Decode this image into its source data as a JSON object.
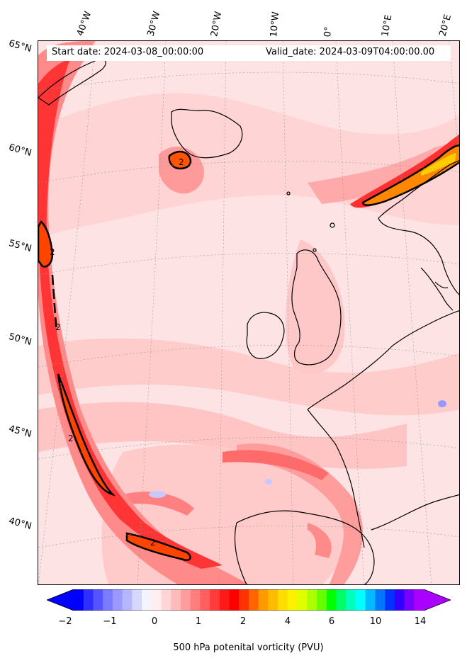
{
  "header": {
    "start_date": "Start date: 2024-03-08_00:00:00",
    "valid_date": "Valid_date: 2024-03-09T04:00:00.00"
  },
  "longitude_labels": [
    "40°W",
    "30°W",
    "20°W",
    "10°W",
    "0°",
    "10°E",
    "20°E"
  ],
  "latitude_labels": [
    "65°N",
    "60°N",
    "55°N",
    "50°N",
    "45°N",
    "40°N"
  ],
  "contour_label": "2",
  "colorbar": {
    "label": "500 hPa potenital vorticity (PVU)",
    "ticks": [
      "−2",
      "−1",
      "0",
      "1",
      "2",
      "4",
      "6",
      "10",
      "14"
    ],
    "colors": [
      "#0000ff",
      "#2e2eff",
      "#5555ff",
      "#7b7bff",
      "#9999ff",
      "#b6b6ff",
      "#d6d6ff",
      "#f4f4ff",
      "#ffeeee",
      "#ffd5d5",
      "#ffbbbb",
      "#ff9d9d",
      "#ff7d7d",
      "#ff5f5f",
      "#ff3b3b",
      "#ff1a1a",
      "#ff0000",
      "#ff3300",
      "#ff6600",
      "#ff9900",
      "#ffbb00",
      "#ffdd00",
      "#fff200",
      "#ddff00",
      "#aaff00",
      "#66ff00",
      "#00ff00",
      "#00ff66",
      "#00ffbb",
      "#00ffff",
      "#00bbff",
      "#0077ff",
      "#0033ff",
      "#3300ff",
      "#7700ff",
      "#aa00ff"
    ],
    "extend_low_color": "#0000ff",
    "extend_high_color": "#aa00ff"
  },
  "colors": {
    "background_pink": "#fde0e0",
    "light_pink": "#ffd0d0",
    "medium_red": "#ff9090",
    "strong_red": "#ff3030",
    "orange_core": "#ff6600",
    "land_outline": "#000000"
  }
}
